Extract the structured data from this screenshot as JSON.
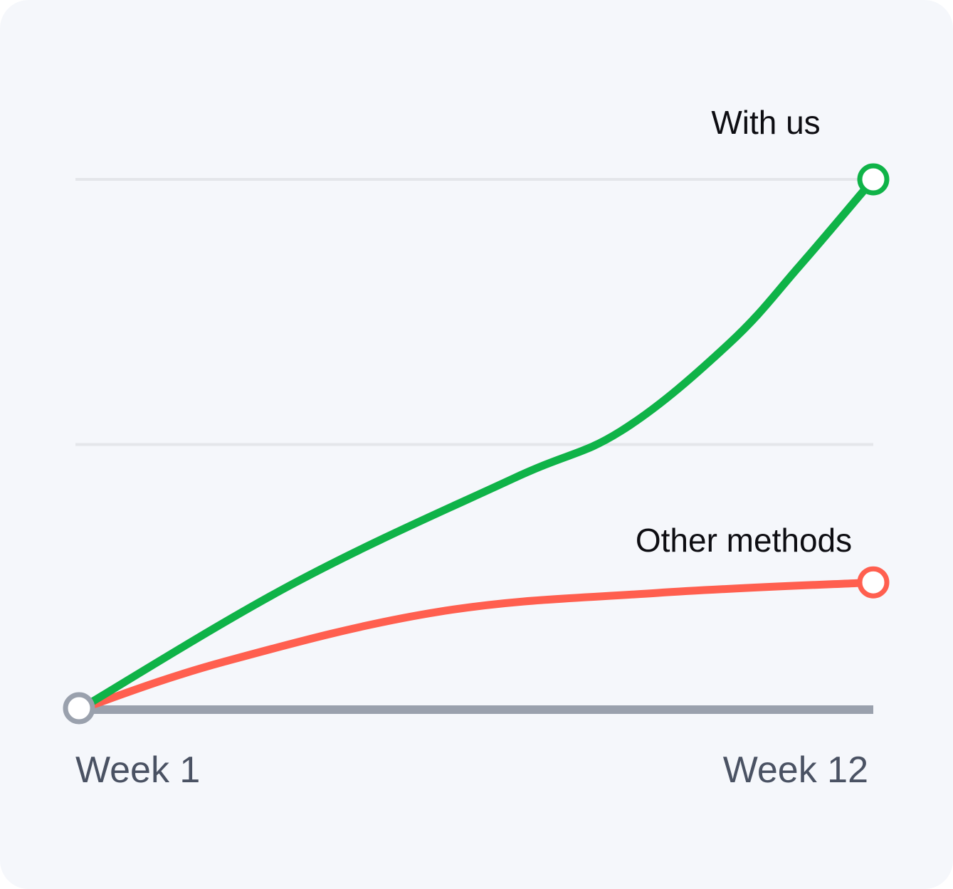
{
  "chart_data": {
    "type": "line",
    "categories": [
      "Week 1",
      "Week 12"
    ],
    "x_tick_labels": [
      "Week 1",
      "Week 12"
    ],
    "xlabel": "",
    "ylabel": "",
    "ylim": [
      0,
      2
    ],
    "grid": true,
    "gridlines_y": [
      1,
      2
    ],
    "series": [
      {
        "name": "With us",
        "color": "#0fb348",
        "points": [
          {
            "x": 1,
            "y": 0
          },
          {
            "x": 4,
            "y": 0.48
          },
          {
            "x": 7,
            "y": 0.87
          },
          {
            "x": 8.5,
            "y": 1.05
          },
          {
            "x": 10,
            "y": 1.38
          },
          {
            "x": 11,
            "y": 1.68
          },
          {
            "x": 12,
            "y": 2
          }
        ]
      },
      {
        "name": "Other methods",
        "color": "#ff5f4f",
        "points": [
          {
            "x": 1,
            "y": 0
          },
          {
            "x": 3,
            "y": 0.18
          },
          {
            "x": 6,
            "y": 0.37
          },
          {
            "x": 9,
            "y": 0.44
          },
          {
            "x": 12,
            "y": 0.48
          }
        ]
      }
    ],
    "baseline_color": "#9aa1ad",
    "grid_color": "#e4e6ea",
    "start_marker_color": "#9aa1ad"
  }
}
